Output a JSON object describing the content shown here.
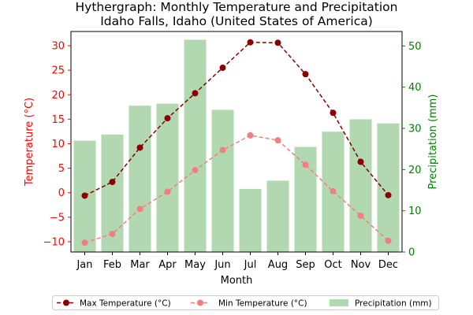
{
  "chart_data": {
    "type": "bar+line",
    "title_line1": "Hythergraph: Monthly Temperature and Precipitation",
    "title_line2": "Idaho Falls, Idaho (United States of America)",
    "xlabel": "Month",
    "ylabel_left": "Temperature (°C)",
    "ylabel_right": "Precipitation (mm)",
    "categories": [
      "Jan",
      "Feb",
      "Mar",
      "Apr",
      "May",
      "Jun",
      "Jul",
      "Aug",
      "Sep",
      "Oct",
      "Nov",
      "Dec"
    ],
    "y_left_lim": [
      -12.1,
      32.9
    ],
    "y_left_ticks": [
      -10,
      -5,
      0,
      5,
      10,
      15,
      20,
      25,
      30
    ],
    "y_right_lim": [
      0,
      53.5
    ],
    "y_right_ticks": [
      0,
      10,
      20,
      30,
      40,
      50
    ],
    "series": [
      {
        "name": "Max Temperature (°C)",
        "kind": "line",
        "axis": "left",
        "color": "#8b0000",
        "linestyle": "dashed",
        "marker": "circle",
        "values": [
          -0.6,
          2.2,
          9.2,
          15.2,
          20.3,
          25.5,
          30.7,
          30.6,
          24.2,
          16.3,
          6.3,
          -0.5
        ]
      },
      {
        "name": "Min Temperature (°C)",
        "kind": "line",
        "axis": "left",
        "color": "#f08080",
        "linestyle": "dashed",
        "marker": "circle",
        "values": [
          -10.2,
          -8.4,
          -3.3,
          0.2,
          4.6,
          8.7,
          11.7,
          10.7,
          5.7,
          0.3,
          -4.7,
          -9.8
        ]
      },
      {
        "name": "Precipitation (mm)",
        "kind": "bar",
        "axis": "right",
        "color": "#b2d8b2",
        "values": [
          27.0,
          28.5,
          35.5,
          36.0,
          51.5,
          34.5,
          15.3,
          17.3,
          25.5,
          29.2,
          32.2,
          31.2
        ]
      }
    ],
    "grid": false,
    "legend_placement": "bottom-center",
    "colors": {
      "left_axis": "#ff0000",
      "right_axis": "#008000"
    }
  }
}
